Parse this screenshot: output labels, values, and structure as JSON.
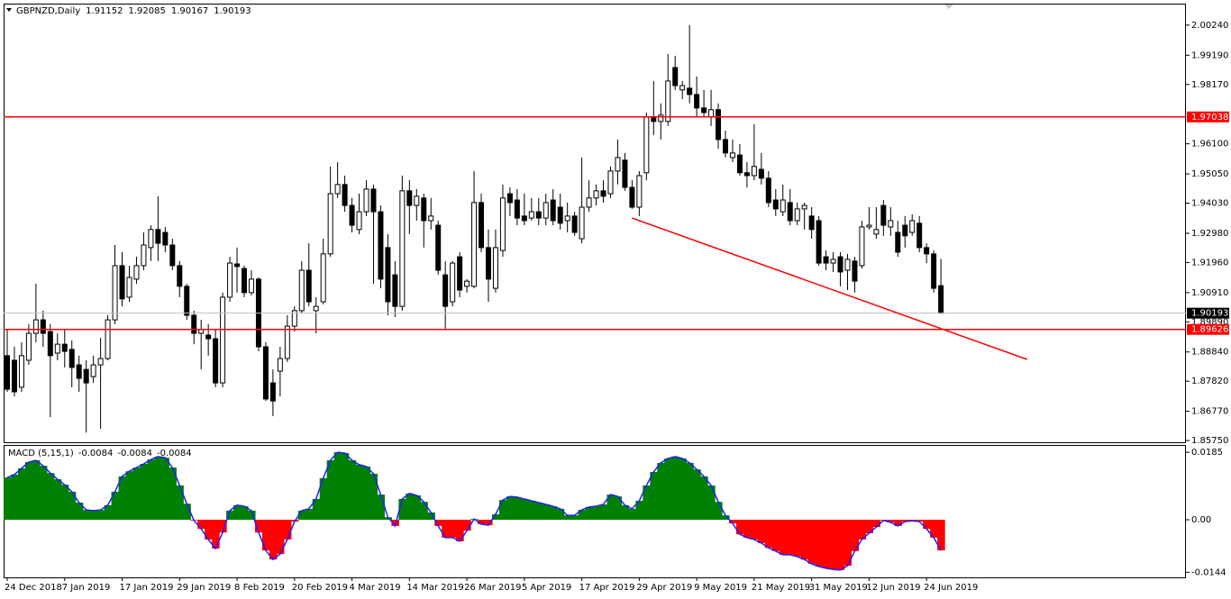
{
  "chart_data": [
    {
      "type": "candlestick",
      "title": "GBPNZD,Daily",
      "categories": [
        "24 Dec 2018",
        null,
        null,
        null,
        null,
        null,
        null,
        null,
        "7 Jan 2019",
        null,
        null,
        null,
        null,
        null,
        null,
        null,
        "17 Jan 2019",
        null,
        null,
        null,
        null,
        null,
        null,
        null,
        "29 Jan 2019",
        null,
        null,
        null,
        null,
        null,
        null,
        null,
        "8 Feb 2019",
        null,
        null,
        null,
        null,
        null,
        null,
        null,
        "20 Feb 2019",
        null,
        null,
        null,
        null,
        null,
        null,
        null,
        "4 Mar 2019",
        null,
        null,
        null,
        null,
        null,
        null,
        null,
        "14 Mar 2019",
        null,
        null,
        null,
        null,
        null,
        null,
        null,
        "26 Mar 2019",
        null,
        null,
        null,
        null,
        null,
        null,
        null,
        "5 Apr 2019",
        null,
        null,
        null,
        null,
        null,
        null,
        null,
        "17 Apr 2019",
        null,
        null,
        null,
        null,
        null,
        null,
        null,
        "29 Apr 2019",
        null,
        null,
        null,
        null,
        null,
        null,
        null,
        "9 May 2019",
        null,
        null,
        null,
        null,
        null,
        null,
        null,
        "21 May 2019",
        null,
        null,
        null,
        null,
        null,
        null,
        null,
        "31 May 2019",
        null,
        null,
        null,
        null,
        null,
        null,
        null,
        "12 Jun 2019",
        null,
        null,
        null,
        null,
        null,
        null,
        null,
        "24 Jun 2019",
        null,
        null
      ],
      "open": [
        1.8871,
        1.8855,
        1.8761,
        1.8855,
        1.8949,
        1.8996,
        1.8955,
        1.888,
        1.8911,
        1.8893,
        1.8839,
        1.8823,
        1.8798,
        1.8839,
        1.8861,
        1.8996,
        1.9185,
        1.9075,
        1.9138,
        1.9185,
        1.9248,
        1.9311,
        1.9301,
        1.9257,
        1.9185,
        1.9113,
        1.9012,
        1.8949,
        1.8943,
        1.893,
        1.8776,
        1.9075,
        1.9191,
        1.9175,
        1.9091,
        1.9138,
        1.8902,
        1.8776,
        1.8817,
        1.8861,
        1.8974,
        1.9028,
        1.9169,
        1.9028,
        1.9059,
        1.9226,
        1.9436,
        1.9468,
        1.9395,
        1.9311,
        1.9373,
        1.9452,
        1.9373,
        1.9248,
        1.9153,
        1.9043,
        1.9446,
        1.9395,
        1.9421,
        1.9342,
        1.9326,
        1.9153,
        1.9059,
        1.9216,
        1.9113,
        1.9113,
        1.9405,
        1.9248,
        1.9106,
        1.9238,
        1.9436,
        1.9414,
        1.9358,
        1.9351,
        1.9373,
        1.9351,
        1.9414,
        1.9389,
        1.9342,
        1.9358,
        1.9279,
        1.9389,
        1.9421,
        1.9446,
        1.9436,
        1.9515,
        1.9553,
        1.9458,
        1.9389,
        1.9509,
        1.9703,
        1.9688,
        1.9688,
        1.9876,
        1.9798,
        1.9804,
        1.9782,
        1.9735,
        1.9703,
        1.9729,
        1.9625,
        1.9562,
        1.9571,
        1.9509,
        1.9499,
        1.9521,
        1.949,
        1.9414,
        1.9373,
        1.9405,
        1.9342,
        1.9383,
        1.9358,
        1.9342,
        1.9216,
        1.9194,
        1.9216,
        1.9169,
        1.9201,
        1.9185,
        1.932,
        1.9295,
        1.9395,
        1.932,
        1.9301,
        1.9326,
        1.9301,
        1.9333,
        1.9248,
        1.9226,
        1.91152
      ],
      "high": [
        1.8965,
        1.8902,
        1.8918,
        1.8981,
        1.9122,
        1.9028,
        1.8981,
        1.8949,
        1.8965,
        1.8924,
        1.8871,
        1.8855,
        1.8871,
        1.8933,
        1.9012,
        1.9257,
        1.9232,
        1.9185,
        1.9216,
        1.9301,
        1.9326,
        1.9427,
        1.932,
        1.9279,
        1.9201,
        1.9122,
        1.9028,
        1.8996,
        1.8981,
        1.8965,
        1.9091,
        1.9216,
        1.9248,
        1.9185,
        1.9169,
        1.9144,
        1.8918,
        1.8823,
        1.8902,
        1.9012,
        1.9043,
        1.9201,
        1.9263,
        1.9075,
        1.9279,
        1.9531,
        1.9546,
        1.9499,
        1.9421,
        1.9436,
        1.9483,
        1.9468,
        1.9395,
        1.9295,
        1.9201,
        1.9499,
        1.9483,
        1.9452,
        1.9436,
        1.9421,
        1.9342,
        1.9201,
        1.9201,
        1.9232,
        1.9138,
        1.9515,
        1.9436,
        1.9311,
        1.9311,
        1.9468,
        1.9458,
        1.9452,
        1.9436,
        1.9421,
        1.9421,
        1.9436,
        1.9452,
        1.9436,
        1.9405,
        1.9373,
        1.9562,
        1.9483,
        1.9468,
        1.9483,
        1.9531,
        1.9625,
        1.9578,
        1.9483,
        1.9515,
        1.9719,
        1.9829,
        1.9751,
        1.9923,
        1.9917,
        1.9829,
        2.0024,
        1.9845,
        1.9798,
        1.9798,
        1.9751,
        1.9656,
        1.9625,
        1.9609,
        1.9546,
        1.9678,
        1.9578,
        1.9515,
        1.9452,
        1.9468,
        1.9452,
        1.9405,
        1.9405,
        1.9389,
        1.9358,
        1.9238,
        1.9232,
        1.9232,
        1.9226,
        1.9216,
        1.9342,
        1.9389,
        1.9389,
        1.9414,
        1.9389,
        1.9342,
        1.9358,
        1.9364,
        1.9358,
        1.9263,
        1.9238,
        1.92085
      ],
      "low": [
        1.8745,
        1.8729,
        1.8745,
        1.8839,
        1.8918,
        1.8902,
        1.8657,
        1.8855,
        1.883,
        1.8761,
        1.8745,
        1.8603,
        1.8776,
        1.8616,
        1.8855,
        1.8981,
        1.9043,
        1.9059,
        1.9122,
        1.9169,
        1.9201,
        1.9201,
        1.9232,
        1.9169,
        1.9075,
        1.8996,
        1.8911,
        1.8823,
        1.8871,
        1.8761,
        1.8761,
        1.9059,
        1.9091,
        1.9075,
        1.9081,
        1.8886,
        1.8713,
        1.866,
        1.8729,
        1.8849,
        1.8955,
        1.9018,
        1.9043,
        1.8949,
        1.905,
        1.9216,
        1.9421,
        1.9373,
        1.9301,
        1.9295,
        1.9358,
        1.9122,
        1.9106,
        1.9012,
        1.9006,
        1.9028,
        1.9295,
        1.9342,
        1.9248,
        1.9311,
        1.9153,
        1.8965,
        1.9043,
        1.9075,
        1.9091,
        1.9106,
        1.9232,
        1.9059,
        1.9091,
        1.9216,
        1.9358,
        1.9326,
        1.9326,
        1.9342,
        1.9326,
        1.9326,
        1.9326,
        1.9311,
        1.9301,
        1.9289,
        1.9263,
        1.9373,
        1.9395,
        1.9405,
        1.9421,
        1.9468,
        1.9446,
        1.9383,
        1.9358,
        1.9483,
        1.9641,
        1.9625,
        1.9672,
        1.9798,
        1.9766,
        1.9751,
        1.9703,
        1.9703,
        1.9672,
        1.9593,
        1.9562,
        1.9546,
        1.9499,
        1.9458,
        1.9483,
        1.9468,
        1.9389,
        1.9358,
        1.9358,
        1.9326,
        1.9326,
        1.9311,
        1.9279,
        1.9185,
        1.9169,
        1.9163,
        1.9113,
        1.91,
        1.9091,
        1.9175,
        1.9311,
        1.9279,
        1.9289,
        1.9289,
        1.9216,
        1.9248,
        1.9289,
        1.9232,
        1.9194,
        1.9091,
        1.90167
      ],
      "close": [
        1.8754,
        1.8745,
        1.8871,
        1.8949,
        1.8996,
        1.8949,
        1.8871,
        1.8911,
        1.8886,
        1.883,
        1.8792,
        1.8776,
        1.8839,
        1.8861,
        1.8996,
        1.9185,
        1.9069,
        1.9144,
        1.9185,
        1.9257,
        1.9311,
        1.9263,
        1.9257,
        1.9185,
        1.9113,
        1.9012,
        1.8949,
        1.8962,
        1.893,
        1.8776,
        1.9075,
        1.9194,
        1.9182,
        1.9091,
        1.9138,
        1.8902,
        1.872,
        1.8713,
        1.8861,
        1.8974,
        1.9028,
        1.9169,
        1.9059,
        1.9043,
        1.9226,
        1.9436,
        1.9468,
        1.9395,
        1.9326,
        1.9373,
        1.9452,
        1.9373,
        1.9138,
        1.9059,
        1.9043,
        1.9446,
        1.9395,
        1.9427,
        1.9342,
        1.9358,
        1.9169,
        1.9043,
        1.9194,
        1.91,
        1.9131,
        1.9405,
        1.9248,
        1.9138,
        1.9248,
        1.9421,
        1.9405,
        1.9351,
        1.9342,
        1.9373,
        1.9351,
        1.9405,
        1.9342,
        1.9333,
        1.9358,
        1.9301,
        1.9389,
        1.9421,
        1.9446,
        1.9427,
        1.9515,
        1.9562,
        1.9458,
        1.9389,
        1.9499,
        1.9703,
        1.9688,
        1.971,
        1.9829,
        1.9813,
        1.9813,
        1.9782,
        1.9735,
        1.9719,
        1.9729,
        1.9625,
        1.9578,
        1.9578,
        1.9509,
        1.9499,
        1.9531,
        1.949,
        1.9405,
        1.9383,
        1.9414,
        1.9342,
        1.9383,
        1.9395,
        1.9311,
        1.9194,
        1.9194,
        1.9207,
        1.9163,
        1.9207,
        1.9131,
        1.932,
        1.9326,
        1.9311,
        1.9326,
        1.9342,
        1.9232,
        1.9289,
        1.9342,
        1.9248,
        1.9226,
        1.9106,
        1.90193
      ],
      "up_color": "#ffffff",
      "down_color": "#000000",
      "ylim": [
        1.8569,
        2.0099
      ],
      "yticks": [
        {
          "value": 2.0024,
          "label": "2.00240"
        },
        {
          "value": 1.9919,
          "label": "1.99190"
        },
        {
          "value": 1.9817,
          "label": "1.98170"
        },
        {
          "value": 1.961,
          "label": "1.96100"
        },
        {
          "value": 1.9505,
          "label": "1.95050"
        },
        {
          "value": 1.9403,
          "label": "1.94030"
        },
        {
          "value": 1.9298,
          "label": "1.92980"
        },
        {
          "value": 1.9196,
          "label": "1.91960"
        },
        {
          "value": 1.9091,
          "label": "1.90910"
        },
        {
          "value": 1.8989,
          "label": "1.89890"
        },
        {
          "value": 1.8884,
          "label": "1.88840"
        },
        {
          "value": 1.8782,
          "label": "1.87820"
        },
        {
          "value": 1.8677,
          "label": "1.86770"
        },
        {
          "value": 1.8575,
          "label": "1.85750"
        }
      ],
      "levels": [
        {
          "value": 1.97038,
          "color": "#ff0000"
        },
        {
          "value": 1.89626,
          "color": "#ff0000"
        }
      ],
      "current_price_color": "#c0c0c0",
      "trendline": {
        "x": [
          87,
          142
        ],
        "y": [
          1.9351,
          1.8858
        ],
        "color": "#ff0000"
      },
      "grid": false
    },
    {
      "type": "macd",
      "title": "MACD (5,15,1)",
      "values": [
        0.0116,
        0.0124,
        0.0141,
        0.0158,
        0.0163,
        0.0148,
        0.0128,
        0.0111,
        0.0096,
        0.0077,
        0.0047,
        0.0027,
        0.0025,
        0.0027,
        0.004,
        0.0077,
        0.0119,
        0.0133,
        0.0143,
        0.0153,
        0.0165,
        0.0173,
        0.017,
        0.0143,
        0.0094,
        0.0044,
        -0.0002,
        -0.0025,
        -0.0054,
        -0.0079,
        -0.0035,
        0.0025,
        0.004,
        0.0037,
        0.0025,
        -0.0035,
        -0.0084,
        -0.0109,
        -0.0094,
        -0.0054,
        -0.0005,
        0.0025,
        0.003,
        0.0057,
        0.0114,
        0.0163,
        0.0185,
        0.0183,
        0.0163,
        0.0151,
        0.0146,
        0.0126,
        0.0069,
        0.0007,
        -0.0017,
        0.0057,
        0.0072,
        0.0067,
        0.0049,
        0.002,
        -0.0017,
        -0.0049,
        -0.0049,
        -0.0059,
        -0.003,
        0.0002,
        -0.0012,
        -0.0015,
        0.0015,
        0.0054,
        0.0064,
        0.0062,
        0.0057,
        0.0052,
        0.0047,
        0.0042,
        0.0037,
        0.003,
        0.0012,
        0.0012,
        0.0027,
        0.0035,
        0.0037,
        0.0042,
        0.0069,
        0.0064,
        0.004,
        0.003,
        0.0052,
        0.0094,
        0.0131,
        0.0156,
        0.0168,
        0.0173,
        0.0168,
        0.0156,
        0.0138,
        0.0119,
        0.0094,
        0.0049,
        0.0012,
        -0.001,
        -0.004,
        -0.0049,
        -0.0054,
        -0.0064,
        -0.0077,
        -0.0086,
        -0.0096,
        -0.0096,
        -0.0101,
        -0.0109,
        -0.0121,
        -0.0128,
        -0.0133,
        -0.0136,
        -0.0138,
        -0.0126,
        -0.0086,
        -0.0054,
        -0.0037,
        -0.002,
        -0.0002,
        -0.0007,
        -0.0017,
        -0.0005,
        -0.0003,
        -0.0005,
        -0.0025,
        -0.0049,
        -0.0084
      ],
      "positive_color": "#008000",
      "negative_color": "#ff0000",
      "line_color": "#2020ff",
      "ylim": [
        -0.0158,
        0.0205
      ],
      "yticks": [
        0.0185,
        {
          "value": 0,
          "label": "0.00"
        },
        -0.0144
      ]
    }
  ]
}
